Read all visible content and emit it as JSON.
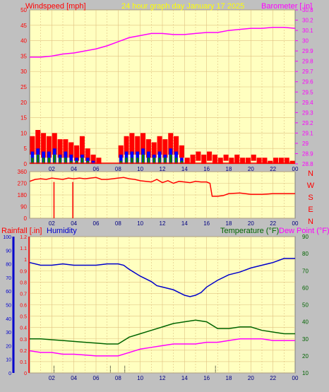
{
  "header": {
    "title": "24 hour graph day   January 17 2025",
    "left_label": "Windspeed [mph]",
    "right_label": "Barometer [.in]"
  },
  "colors": {
    "plot_bg": "#ffffc0",
    "frame_bg": "#c0c0c0",
    "grid": "#e0c080",
    "wind_gust": "#ff0000",
    "wind_avg": "#0000ff",
    "wind_low": "#008000",
    "barometer": "#ff00ff",
    "direction": "#ff0000",
    "humidity": "#0000cc",
    "temperature": "#006400",
    "dewpoint": "#ff00ff",
    "rain": "#ff0000"
  },
  "time_ticks": [
    "02",
    "04",
    "06",
    "08",
    "10",
    "12",
    "14",
    "16",
    "18",
    "20",
    "22",
    "00"
  ],
  "direction_compass": [
    "N",
    "W",
    "S",
    "E",
    "N"
  ],
  "bottom_labels": {
    "rain": "Rainfall [.in]",
    "humidity": "Humidity",
    "temperature": "Temperature (°F)",
    "dewpoint": "Dew Point (°F)"
  },
  "chart_data": [
    {
      "type": "line",
      "title": "24 hour graph day   January 17 2025",
      "ylabel": "Windspeed [mph]",
      "y2label": "Barometer [.in]",
      "x_ticks": [
        "02",
        "04",
        "06",
        "08",
        "10",
        "12",
        "14",
        "16",
        "18",
        "20",
        "22",
        "00"
      ],
      "ylim": [
        0,
        50
      ],
      "y_ticks": [
        "0",
        "5",
        "10",
        "15",
        "20",
        "25",
        "30",
        "35",
        "40",
        "45",
        "50"
      ],
      "y2lim": [
        28.8,
        30.3
      ],
      "y2_ticks": [
        "28.8",
        "28.9",
        "29",
        "29.1",
        "29.2",
        "29.3",
        "29.4",
        "29.5",
        "29.6",
        "29.7",
        "29.8",
        "29.9",
        "30",
        "30.1",
        "30.2",
        "30.3"
      ],
      "series": [
        {
          "name": "Barometer [.in]",
          "axis": "y2",
          "x": [
            0,
            1,
            2,
            3,
            4,
            5,
            6,
            7,
            8,
            9,
            10,
            11,
            12,
            13,
            14,
            15,
            16,
            17,
            18,
            19,
            20,
            21,
            22,
            23,
            24
          ],
          "values": [
            29.84,
            29.84,
            29.85,
            29.87,
            29.88,
            29.9,
            29.92,
            29.95,
            29.99,
            30.03,
            30.05,
            30.07,
            30.07,
            30.06,
            30.06,
            30.07,
            30.08,
            30.08,
            30.1,
            30.11,
            30.12,
            30.12,
            30.13,
            30.13,
            30.12
          ]
        }
      ],
      "wind": {
        "gust_max": [
          9,
          11,
          10,
          9,
          10,
          8,
          8,
          7,
          6,
          9,
          5,
          3,
          2,
          0,
          0,
          0,
          6,
          9,
          10,
          9,
          10,
          8,
          7,
          9,
          8,
          10,
          9,
          6,
          2,
          3,
          4,
          3,
          4,
          3,
          2,
          3,
          2,
          3,
          2,
          2,
          3,
          2,
          2,
          1,
          2,
          2,
          2,
          1
        ],
        "gust_min": [
          3,
          3,
          2,
          2,
          3,
          2,
          2,
          2,
          1,
          2,
          1,
          0,
          0,
          0,
          0,
          0,
          2,
          3,
          3,
          3,
          3,
          2,
          2,
          3,
          2,
          3,
          3,
          2,
          0,
          0,
          1,
          0,
          1,
          0,
          0,
          1,
          0,
          0,
          0,
          0,
          1,
          0,
          0,
          0,
          0,
          0,
          0,
          0
        ],
        "avg_max": [
          4,
          5,
          4,
          4,
          5,
          3,
          4,
          3,
          2,
          3,
          2,
          1,
          0,
          0,
          0,
          0,
          3,
          4,
          4,
          4,
          5,
          4,
          3,
          4,
          3,
          5,
          4,
          2,
          0,
          0,
          0,
          0,
          0,
          0,
          0,
          0,
          0,
          0,
          0,
          0,
          0,
          0,
          0,
          0,
          0,
          0,
          0,
          0
        ],
        "low_max": [
          2,
          3,
          2,
          2,
          3,
          2,
          2,
          1,
          1,
          2,
          1,
          0,
          0,
          0,
          0,
          0,
          1,
          2,
          2,
          2,
          3,
          2,
          2,
          2,
          2,
          3,
          2,
          1,
          0,
          0,
          0,
          0,
          0,
          0,
          0,
          0,
          0,
          0,
          0,
          0,
          0,
          0,
          0,
          0,
          0,
          0,
          0,
          0
        ]
      }
    },
    {
      "type": "line",
      "x_ticks": [
        "02",
        "04",
        "06",
        "08",
        "10",
        "12",
        "14",
        "16",
        "18",
        "20",
        "22",
        "00"
      ],
      "ylim": [
        0,
        360
      ],
      "y_ticks": [
        "0",
        "90",
        "180",
        "270",
        "360"
      ],
      "series": [
        {
          "name": "Wind direction",
          "x": [
            0,
            0.5,
            1,
            1.5,
            2,
            2.5,
            3,
            3.5,
            4,
            4.5,
            5,
            5.5,
            6,
            6.5,
            7,
            7.5,
            8,
            8.5,
            9,
            9.5,
            10,
            10.5,
            11,
            11.5,
            12,
            12.5,
            13,
            13.5,
            14,
            14.5,
            15,
            15.5,
            16,
            16.3,
            16.5,
            17,
            17.5,
            18,
            19,
            20,
            21,
            22,
            23,
            24
          ],
          "values": [
            285,
            300,
            305,
            300,
            310,
            305,
            300,
            310,
            305,
            310,
            305,
            310,
            315,
            300,
            300,
            305,
            310,
            315,
            305,
            300,
            290,
            285,
            280,
            300,
            275,
            290,
            270,
            285,
            280,
            275,
            285,
            280,
            280,
            270,
            170,
            170,
            175,
            190,
            195,
            185,
            185,
            190,
            190,
            190
          ]
        }
      ]
    },
    {
      "type": "line",
      "ylabel": "Rainfall [.in]",
      "y2label": "Temperature (°F)",
      "x_ticks": [
        "02",
        "04",
        "06",
        "08",
        "10",
        "12",
        "14",
        "16",
        "18",
        "20",
        "22",
        "00"
      ],
      "ylim": [
        0,
        100
      ],
      "y_ticks": [
        "0",
        "10",
        "20",
        "30",
        "40",
        "50",
        "60",
        "70",
        "80",
        "90",
        "100"
      ],
      "y_rain_ticks": [
        "0",
        "0.1",
        "0.2",
        "0.3",
        "0.4",
        "0.5",
        "0.6",
        "0.7",
        "0.8",
        "0.9",
        "1",
        "1.1",
        "1.2"
      ],
      "y2lim": [
        10,
        90
      ],
      "y2_ticks": [
        "10",
        "20",
        "30",
        "40",
        "50",
        "60",
        "70",
        "80",
        "90"
      ],
      "series": [
        {
          "name": "Humidity",
          "axis": "y",
          "x": [
            0,
            1,
            2,
            3,
            4,
            5,
            6,
            7,
            8,
            8.5,
            9,
            10,
            11,
            11.5,
            12,
            13,
            14,
            14.5,
            15,
            15.5,
            16,
            17,
            18,
            19,
            20,
            21,
            22,
            23,
            24
          ],
          "values": [
            81,
            79,
            79,
            80,
            79,
            79,
            79,
            80,
            80,
            79,
            76,
            71,
            67,
            64,
            63,
            61,
            57,
            56,
            57,
            59,
            63,
            68,
            72,
            74,
            77,
            79,
            81,
            84,
            84
          ]
        },
        {
          "name": "Temperature (°F)",
          "axis": "y2",
          "x": [
            0,
            1,
            2,
            3,
            4,
            5,
            6,
            7,
            8,
            9,
            10,
            11,
            12,
            13,
            14,
            15,
            16,
            17,
            18,
            19,
            20,
            21,
            22,
            23,
            24
          ],
          "values": [
            30,
            30,
            29.5,
            29,
            28.5,
            28,
            27.5,
            27,
            27,
            31,
            33,
            35,
            37,
            39,
            40,
            41,
            40,
            36,
            36,
            37,
            37,
            35,
            34,
            33,
            33
          ]
        },
        {
          "name": "Dew Point (°F)",
          "axis": "y2",
          "x": [
            0,
            1,
            2,
            3,
            4,
            5,
            6,
            7,
            8,
            9,
            10,
            11,
            12,
            13,
            14,
            15,
            16,
            17,
            18,
            19,
            20,
            21,
            22,
            23,
            24
          ],
          "values": [
            23,
            22,
            22,
            21,
            21,
            20.5,
            20,
            20,
            20,
            22,
            24,
            25,
            26,
            27,
            27,
            27,
            28,
            28,
            29,
            30,
            30,
            30,
            29,
            29,
            29
          ]
        }
      ],
      "rain_marks_x": [
        2.2,
        7.3,
        8.6,
        16.8
      ]
    }
  ]
}
